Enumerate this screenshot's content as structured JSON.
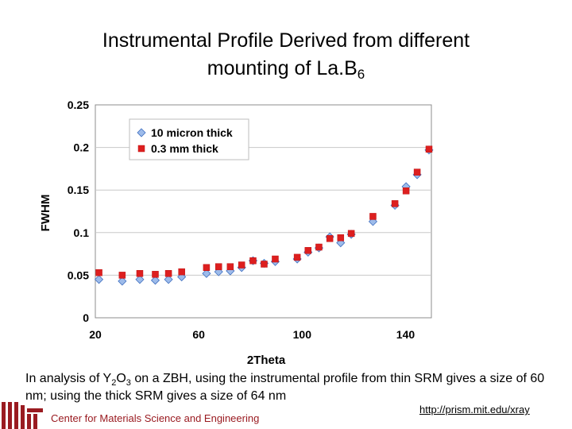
{
  "title": {
    "line1": "Instrumental Profile Derived from different",
    "line2": "mounting of La.B",
    "line2_sub": "6"
  },
  "chart_data": {
    "type": "scatter",
    "xlabel": "2Theta",
    "ylabel": "FWHM",
    "xlim": [
      20,
      150
    ],
    "ylim": [
      0,
      0.25
    ],
    "xticks": [
      20,
      60,
      100,
      140
    ],
    "xtick_labels": [
      "20",
      "60",
      "100",
      "140"
    ],
    "yticks": [
      0,
      0.05,
      0.1,
      0.15,
      0.2,
      0.25
    ],
    "ytick_labels": [
      "0",
      "0.05",
      "0.1",
      "0.15",
      "0.2",
      "0.25"
    ],
    "grid": "horizontal",
    "legend_position": "top-left",
    "series": [
      {
        "name": "10 micron thick",
        "marker": "diamond",
        "color": "#9dbbea",
        "stroke": "#3f6fc0",
        "points": [
          [
            21.4,
            0.045
          ],
          [
            30.4,
            0.043
          ],
          [
            37.2,
            0.045
          ],
          [
            43.2,
            0.044
          ],
          [
            48.3,
            0.045
          ],
          [
            53.4,
            0.048
          ],
          [
            63,
            0.052
          ],
          [
            67.7,
            0.054
          ],
          [
            72.2,
            0.055
          ],
          [
            76.6,
            0.059
          ],
          [
            81,
            0.067
          ],
          [
            85.3,
            0.064
          ],
          [
            89.6,
            0.066
          ],
          [
            98.1,
            0.069
          ],
          [
            102.3,
            0.077
          ],
          [
            106.5,
            0.082
          ],
          [
            110.7,
            0.095
          ],
          [
            114.9,
            0.088
          ],
          [
            119,
            0.098
          ],
          [
            127.4,
            0.113
          ],
          [
            135.9,
            0.132
          ],
          [
            140.2,
            0.154
          ],
          [
            144.5,
            0.168
          ],
          [
            154,
            0.197
          ]
        ]
      },
      {
        "name": "0.3 mm thick",
        "marker": "square",
        "color": "#dd1f1f",
        "stroke": "#c01010",
        "points": [
          [
            21.4,
            0.053
          ],
          [
            30.4,
            0.05
          ],
          [
            37.2,
            0.052
          ],
          [
            43.2,
            0.051
          ],
          [
            48.3,
            0.052
          ],
          [
            53.4,
            0.054
          ],
          [
            63,
            0.059
          ],
          [
            67.7,
            0.06
          ],
          [
            72.2,
            0.06
          ],
          [
            76.6,
            0.062
          ],
          [
            81,
            0.067
          ],
          [
            85.3,
            0.063
          ],
          [
            89.6,
            0.069
          ],
          [
            98.1,
            0.071
          ],
          [
            102.3,
            0.079
          ],
          [
            106.5,
            0.083
          ],
          [
            110.7,
            0.093
          ],
          [
            114.9,
            0.094
          ],
          [
            119,
            0.099
          ],
          [
            127.4,
            0.119
          ],
          [
            135.9,
            0.134
          ],
          [
            140.2,
            0.149
          ],
          [
            144.5,
            0.171
          ],
          [
            154,
            0.198
          ]
        ]
      }
    ]
  },
  "caption": {
    "p1": "In analysis of Y",
    "s1": "2",
    "p2": "O",
    "s2": "3",
    "p3": " on a ZBH, using the instrumental profile from thin SRM gives a size of 60 nm; using the thick SRM gives a size of 64 nm"
  },
  "footer": {
    "org": "Center for Materials Science and Engineering",
    "url": "http://prism.mit.edu/xray",
    "logo_color": "#9a1b21"
  }
}
